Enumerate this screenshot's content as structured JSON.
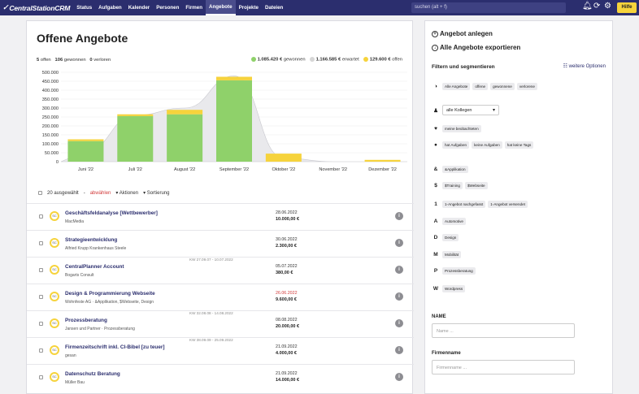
{
  "nav": {
    "logo": "CentralStationCRM",
    "menu": [
      {
        "label": "Status",
        "active": false
      },
      {
        "label": "Aufgaben",
        "active": false
      },
      {
        "label": "Kalender",
        "active": false
      },
      {
        "label": "Personen",
        "active": false
      },
      {
        "label": "Firmen",
        "active": false
      },
      {
        "label": "Angebote",
        "active": true
      },
      {
        "label": "Projekte",
        "active": false
      },
      {
        "label": "Dateien",
        "active": false
      }
    ],
    "search_placeholder": "suchen (alt + f)",
    "help_label": "Hilfe",
    "icons": [
      "bell-icon",
      "refresh-icon",
      "gear-icon"
    ]
  },
  "main": {
    "title": "Offene Angebote",
    "counts": {
      "open": "5",
      "open_label": "offen",
      "won": "106",
      "won_label": "gewonnen",
      "lost": "0",
      "lost_label": "verloren"
    },
    "totals": [
      {
        "value": "1.085.420 €",
        "label": "gewonnen",
        "color": "#8fd16a"
      },
      {
        "value": "1.166.585 €",
        "label": "erwartet",
        "color": "#d6d6d6"
      },
      {
        "value": "129.600 €",
        "label": "offen",
        "color": "#f6d33c"
      }
    ],
    "list_toolbar": {
      "selected": "20 ausgewählt",
      "deselect": "abwählen",
      "actions": "Aktionen",
      "sort": "Sortierung"
    },
    "rows": [
      {
        "title": "Geschäftsfeldanalyse [Wettbewerber]",
        "sub": "MacMedia",
        "range": "",
        "date": "28.06.2022",
        "date_overdue": false,
        "amount": "10.000,00 €"
      },
      {
        "title": "Strategieentwicklung",
        "sub": "Alfried Krupp Krankenhaus Steele",
        "range": "",
        "date": "30.06.2022",
        "date_overdue": false,
        "amount": "2.300,00 €"
      },
      {
        "title": "CentralPlanner Account",
        "sub": "Bogarts Consult",
        "range": "KW 27.09.07 - 10.07.2022",
        "date": "05.07.2022",
        "date_overdue": false,
        "amount": "380,00 €"
      },
      {
        "title": "Design & Programmierung Webseite",
        "sub": "Wohnfeste AG · &Applikation, $Webseite, Design",
        "range": "",
        "date": "26.06.2022",
        "date_overdue": true,
        "amount": "9.600,00 €"
      },
      {
        "title": "Prozessberatung",
        "sub": "Jansen und Partner · Prozessberatung",
        "range": "KW 32.08.08 - 14.08.2022",
        "date": "08.08.2022",
        "date_overdue": false,
        "amount": "20.000,00 €"
      },
      {
        "title": "Firmenzeitschrift inkl. CI-Bibel [zu teuer]",
        "sub": "gesan",
        "range": "KW 38.09.09 - 25.09.2022",
        "date": "21.09.2022",
        "date_overdue": false,
        "amount": "4.000,00 €"
      },
      {
        "title": "Datenschutz Beratung",
        "sub": "Müller Bau",
        "range": "",
        "date": "21.09.2022",
        "date_overdue": false,
        "amount": "14.000,00 €"
      }
    ]
  },
  "chart_data": {
    "type": "bar",
    "categories": [
      "Juni '22",
      "Juli '22",
      "August '22",
      "September '22",
      "Oktober '22",
      "November '22",
      "Dezember '22"
    ],
    "series": [
      {
        "name": "gewonnen",
        "color": "#8fd16a",
        "values": [
          115000,
          255000,
          265000,
          455000,
          0,
          0,
          0
        ]
      },
      {
        "name": "offen",
        "color": "#f6d33c",
        "values": [
          10000,
          10000,
          25000,
          20000,
          45000,
          0,
          10000
        ]
      }
    ],
    "expected_curve": [
      60000,
      260000,
      300000,
      480000,
      20000,
      0,
      0
    ],
    "yticks": [
      "0",
      "50.000",
      "100.000",
      "150.000",
      "200.000",
      "250.000",
      "300.000",
      "350.000",
      "400.000",
      "450.000",
      "500.000"
    ],
    "ylim": [
      0,
      500000
    ],
    "stacked": true,
    "grid": true
  },
  "sidebar": {
    "actions": [
      {
        "label": "Angebot anlegen",
        "icon": "plus-circle-icon"
      },
      {
        "label": "Alle Angebote exportieren",
        "icon": "export-icon"
      }
    ],
    "filter_heading": "Filtern und segmentieren",
    "more_options": "weitere Optionen",
    "filters": [
      {
        "icon": "◑",
        "chips": [
          "Alle Angebote",
          "offene",
          "gewonnene",
          "verlorene"
        ]
      },
      {
        "icon": "♟",
        "select": "alle Kollegen"
      },
      {
        "icon": "♥",
        "chips": [
          "meine beobachteten"
        ]
      },
      {
        "icon": "●",
        "chips": [
          "hat Aufgaben",
          "keine Aufgaben",
          "hat keine Tags"
        ]
      },
      {
        "icon": "&",
        "chips": [
          "&Applikation"
        ]
      },
      {
        "icon": "$",
        "chips": [
          "$Training",
          "$Webseite"
        ]
      },
      {
        "icon": "1",
        "chips": [
          "1-Angebot nachgefasst",
          "1-Angebot versendet"
        ]
      },
      {
        "icon": "A",
        "chips": [
          "Automotive"
        ]
      },
      {
        "icon": "D",
        "chips": [
          "Design"
        ]
      },
      {
        "icon": "M",
        "chips": [
          "Mobilität"
        ]
      },
      {
        "icon": "P",
        "chips": [
          "Prozessberatung"
        ]
      },
      {
        "icon": "W",
        "chips": [
          "Wordpress"
        ]
      }
    ],
    "name_label": "NAME",
    "name_placeholder": "Name ...",
    "company_label": "Firmenname",
    "company_placeholder": "Firmenname ..."
  }
}
